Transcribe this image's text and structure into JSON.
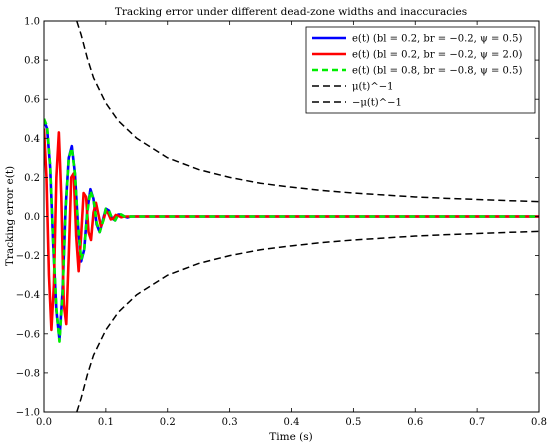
{
  "chart_data": {
    "type": "line",
    "title": "Tracking error under different dead-zone widths and inaccuracies",
    "xlabel": "Time (s)",
    "ylabel": "Tracking error e(t)",
    "xlim": [
      0,
      0.8
    ],
    "ylim": [
      -1,
      1
    ],
    "xticks": [
      "0.0",
      "0.1",
      "0.2",
      "0.3",
      "0.4",
      "0.5",
      "0.6",
      "0.7",
      "0.8"
    ],
    "yticks": [
      "−1.0",
      "−0.8",
      "−0.6",
      "−0.4",
      "−0.2",
      "0.0",
      "0.2",
      "0.4",
      "0.6",
      "0.8",
      "1.0"
    ],
    "grid": false,
    "legend_position": "top-right",
    "series": [
      {
        "name": "e(t) (bl = 0.2, br = −0.2, ψ = 0.5)",
        "color": "#0000ff",
        "style": "solid",
        "x": [
          0,
          0.005,
          0.01,
          0.015,
          0.02,
          0.025,
          0.03,
          0.035,
          0.04,
          0.045,
          0.05,
          0.055,
          0.06,
          0.065,
          0.07,
          0.075,
          0.08,
          0.085,
          0.09,
          0.095,
          0.1,
          0.105,
          0.11,
          0.115,
          0.12,
          0.125,
          0.13,
          0.135,
          0.14,
          0.15,
          0.16,
          0.18,
          0.2,
          0.3,
          0.4,
          0.5,
          0.6,
          0.7,
          0.8
        ],
        "y": [
          0.49,
          0.45,
          0.25,
          -0.15,
          -0.48,
          -0.63,
          -0.38,
          0.05,
          0.3,
          0.36,
          0.22,
          -0.05,
          -0.23,
          -0.17,
          0.03,
          0.14,
          0.09,
          -0.04,
          -0.08,
          -0.02,
          0.04,
          0.03,
          -0.01,
          -0.02,
          0.01,
          0.01,
          0.0,
          -0.005,
          0.0,
          0.0,
          0.0,
          0.0,
          0.0,
          0.0,
          0.0,
          0.0,
          0.0,
          0.0,
          0.0
        ]
      },
      {
        "name": "e(t) (bl = 0.2, br = −0.2, ψ = 2.0)",
        "color": "#ff0000",
        "style": "solid",
        "x": [
          0,
          0.004,
          0.008,
          0.012,
          0.016,
          0.02,
          0.024,
          0.028,
          0.032,
          0.036,
          0.04,
          0.044,
          0.048,
          0.052,
          0.056,
          0.06,
          0.064,
          0.068,
          0.072,
          0.076,
          0.08,
          0.084,
          0.088,
          0.092,
          0.096,
          0.1,
          0.104,
          0.108,
          0.112,
          0.116,
          0.12,
          0.125,
          0.13,
          0.14,
          0.15,
          0.16,
          0.18,
          0.2,
          0.3,
          0.4,
          0.5,
          0.6,
          0.7,
          0.8
        ],
        "y": [
          0.45,
          0.2,
          -0.3,
          -0.58,
          -0.35,
          0.2,
          0.43,
          0.1,
          -0.45,
          -0.55,
          -0.2,
          0.2,
          0.22,
          -0.1,
          -0.28,
          -0.1,
          0.12,
          0.1,
          -0.08,
          -0.12,
          0.02,
          0.07,
          0.01,
          -0.05,
          -0.02,
          0.03,
          0.015,
          -0.015,
          -0.01,
          0.008,
          0.004,
          -0.004,
          0.0,
          0.0,
          0.0,
          0.0,
          0.0,
          0.0,
          0.0,
          0.0,
          0.0,
          0.0,
          0.0,
          0.0
        ]
      },
      {
        "name": "e(t) (bl = 0.8, br = −0.8, ψ = 0.5)",
        "color": "#00ee00",
        "style": "dashed",
        "x": [
          0,
          0.005,
          0.01,
          0.015,
          0.02,
          0.025,
          0.03,
          0.035,
          0.04,
          0.045,
          0.05,
          0.055,
          0.06,
          0.065,
          0.07,
          0.075,
          0.08,
          0.085,
          0.09,
          0.095,
          0.1,
          0.105,
          0.11,
          0.115,
          0.12,
          0.125,
          0.13,
          0.135,
          0.14,
          0.15,
          0.16,
          0.18,
          0.2,
          0.3,
          0.4,
          0.5,
          0.6,
          0.7,
          0.8
        ],
        "y": [
          0.5,
          0.46,
          0.26,
          -0.14,
          -0.47,
          -0.64,
          -0.4,
          0.04,
          0.3,
          0.35,
          0.22,
          -0.04,
          -0.22,
          -0.17,
          0.02,
          0.13,
          0.09,
          -0.03,
          -0.08,
          -0.03,
          0.04,
          0.03,
          -0.01,
          -0.02,
          0.01,
          0.01,
          0.0,
          -0.005,
          0.0,
          0.0,
          0.0,
          0.0,
          0.0,
          0.0,
          0.0,
          0.0,
          0.0,
          0.0,
          0.0
        ]
      },
      {
        "name": "μ(t)^−1",
        "color": "#000000",
        "style": "dashed",
        "x": [
          0.053,
          0.06,
          0.07,
          0.08,
          0.1,
          0.12,
          0.15,
          0.2,
          0.25,
          0.3,
          0.35,
          0.4,
          0.45,
          0.5,
          0.55,
          0.6,
          0.65,
          0.7,
          0.75,
          0.8
        ],
        "y": [
          1.0,
          0.93,
          0.81,
          0.71,
          0.58,
          0.49,
          0.4,
          0.3,
          0.24,
          0.2,
          0.17,
          0.15,
          0.133,
          0.12,
          0.11,
          0.1,
          0.093,
          0.087,
          0.081,
          0.076
        ]
      },
      {
        "name": "−μ(t)^−1",
        "color": "#000000",
        "style": "dashed",
        "x": [
          0.053,
          0.06,
          0.07,
          0.08,
          0.1,
          0.12,
          0.15,
          0.2,
          0.25,
          0.3,
          0.35,
          0.4,
          0.45,
          0.5,
          0.55,
          0.6,
          0.65,
          0.7,
          0.75,
          0.8
        ],
        "y": [
          -1.0,
          -0.93,
          -0.81,
          -0.71,
          -0.58,
          -0.49,
          -0.4,
          -0.3,
          -0.24,
          -0.2,
          -0.17,
          -0.15,
          -0.133,
          -0.12,
          -0.11,
          -0.1,
          -0.093,
          -0.087,
          -0.081,
          -0.076
        ]
      }
    ]
  }
}
